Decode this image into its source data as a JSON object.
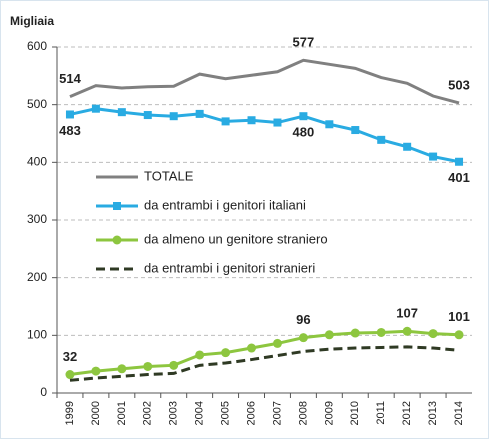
{
  "chart_data": {
    "type": "line",
    "y_label": "Migliaia",
    "categories": [
      "1999",
      "2000",
      "2001",
      "2002",
      "2003",
      "2004",
      "2005",
      "2006",
      "2007",
      "2008",
      "2009",
      "2010",
      "2011",
      "2012",
      "2013",
      "2014"
    ],
    "ylim": [
      0,
      600
    ],
    "yticks": [
      0,
      100,
      200,
      300,
      400,
      500,
      600
    ],
    "grid": true,
    "series": [
      {
        "name": "TOTALE",
        "color": "#808080",
        "marker": "none",
        "dash": false,
        "values": [
          514,
          533,
          529,
          531,
          532,
          553,
          545,
          551,
          557,
          577,
          570,
          563,
          547,
          537,
          515,
          503
        ],
        "value_labels": [
          "514",
          null,
          null,
          null,
          null,
          null,
          null,
          null,
          null,
          "577",
          null,
          null,
          null,
          null,
          null,
          "503"
        ]
      },
      {
        "name": "da entrambi i genitori italiani",
        "color": "#29abe2",
        "marker": "square",
        "dash": false,
        "values": [
          483,
          493,
          487,
          482,
          480,
          484,
          471,
          473,
          469,
          480,
          466,
          456,
          439,
          427,
          410,
          401
        ],
        "value_labels": [
          "483",
          null,
          null,
          null,
          null,
          null,
          null,
          null,
          null,
          "480",
          null,
          null,
          null,
          null,
          null,
          "401"
        ]
      },
      {
        "name": "da almeno un genitore straniero",
        "color": "#8dc63f",
        "marker": "circle",
        "dash": false,
        "values": [
          32,
          38,
          42,
          46,
          48,
          66,
          70,
          78,
          86,
          96,
          101,
          104,
          105,
          107,
          103,
          101
        ],
        "value_labels": [
          "32",
          null,
          null,
          null,
          null,
          null,
          null,
          null,
          null,
          "96",
          null,
          null,
          null,
          "107",
          null,
          "101"
        ]
      },
      {
        "name": "da entrambi i genitori stranieri",
        "color": "#2f3a24",
        "marker": "none",
        "dash": true,
        "values": [
          22,
          26,
          29,
          32,
          34,
          48,
          52,
          58,
          65,
          72,
          76,
          78,
          79,
          80,
          78,
          74
        ]
      }
    ]
  }
}
